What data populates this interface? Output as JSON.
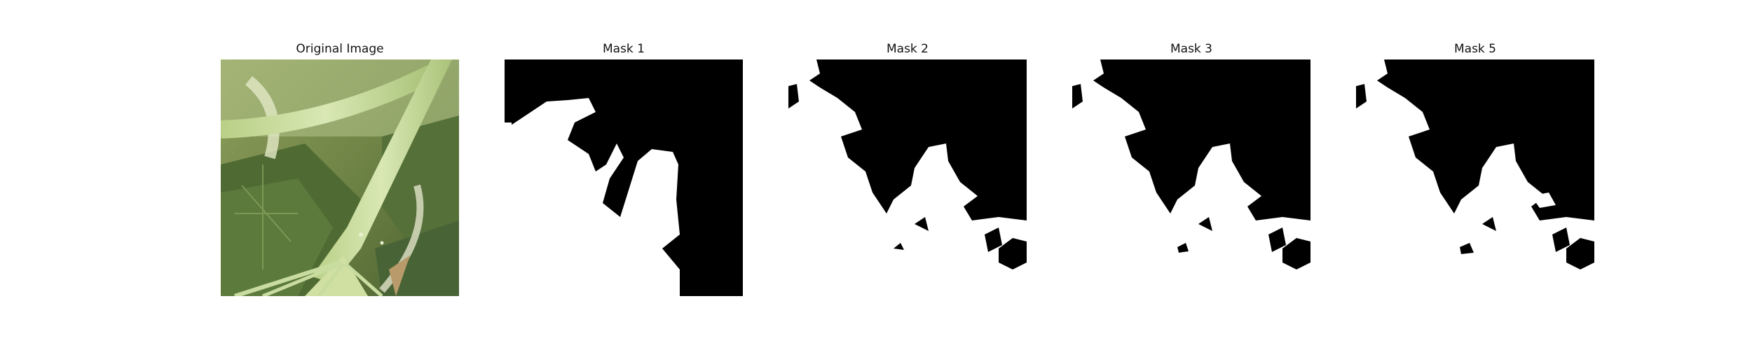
{
  "figure": {
    "panels": [
      {
        "title": "Original Image",
        "kind": "photo",
        "subject": "leaf-stems-photo"
      },
      {
        "title": "Mask 1",
        "kind": "mask"
      },
      {
        "title": "Mask 2",
        "kind": "mask"
      },
      {
        "title": "Mask 3",
        "kind": "mask"
      },
      {
        "title": "Mask 5",
        "kind": "mask"
      }
    ],
    "colors": {
      "mask_background": "#000000",
      "mask_foreground": "#ffffff",
      "page": "#ffffff"
    }
  }
}
